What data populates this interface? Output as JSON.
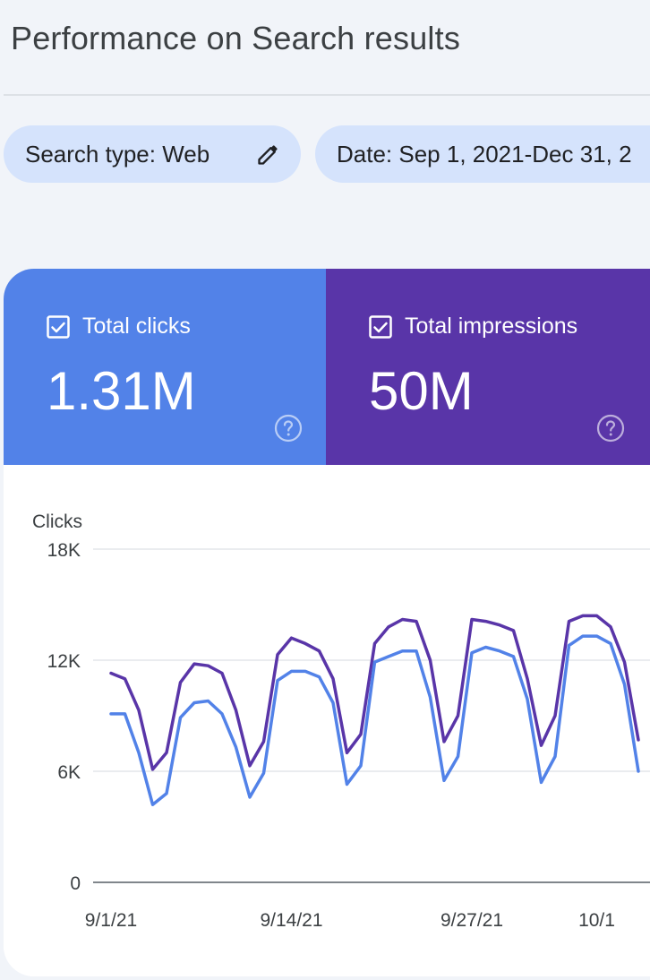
{
  "page": {
    "title": "Performance on Search results"
  },
  "filters": {
    "search_type": "Search type: Web",
    "date": "Date: Sep 1, 2021-Dec 31, 2"
  },
  "metrics": {
    "clicks": {
      "label": "Total clicks",
      "value": "1.31M",
      "color": "#5282e8",
      "checked": true
    },
    "impressions": {
      "label": "Total impressions",
      "value": "50M",
      "color": "#5935a8",
      "checked": true
    }
  },
  "icons": {
    "edit": "pencil-icon",
    "help": "question-circle-icon",
    "checkbox": "checkbox-checked-icon"
  },
  "chart_data": {
    "type": "line",
    "ylabel": "Clicks",
    "yticks": [
      "0",
      "6K",
      "12K",
      "18K"
    ],
    "ylim": [
      0,
      18000
    ],
    "xticks": [
      "9/1/21",
      "9/14/21",
      "9/27/21",
      "10/1"
    ],
    "xtick_days": [
      0,
      13,
      26,
      35
    ],
    "x_domain": [
      "9/1/21",
      "10/8/21"
    ],
    "grid": true,
    "series": [
      {
        "key": "impressions",
        "color": "#5935a8",
        "x_start": "9/1/21",
        "values": [
          11300,
          11000,
          9300,
          6100,
          7000,
          10800,
          11800,
          11700,
          11300,
          9300,
          6300,
          7600,
          12300,
          13200,
          12900,
          12500,
          11000,
          7000,
          8000,
          12900,
          13800,
          14200,
          14100,
          12000,
          7600,
          9000,
          14200,
          14100,
          13900,
          13600,
          11000,
          7400,
          9000,
          14100,
          14400,
          14400,
          13800,
          11900,
          7700
        ]
      },
      {
        "key": "clicks",
        "color": "#5282e8",
        "x_start": "9/1/21",
        "values": [
          9100,
          9100,
          7000,
          4200,
          4800,
          8900,
          9700,
          9800,
          9100,
          7300,
          4600,
          5900,
          10900,
          11400,
          11400,
          11100,
          9700,
          5300,
          6300,
          11900,
          12200,
          12500,
          12500,
          10000,
          5500,
          6800,
          12400,
          12700,
          12500,
          12200,
          9900,
          5400,
          6800,
          12800,
          13300,
          13300,
          12900,
          10700,
          6000
        ]
      }
    ]
  }
}
